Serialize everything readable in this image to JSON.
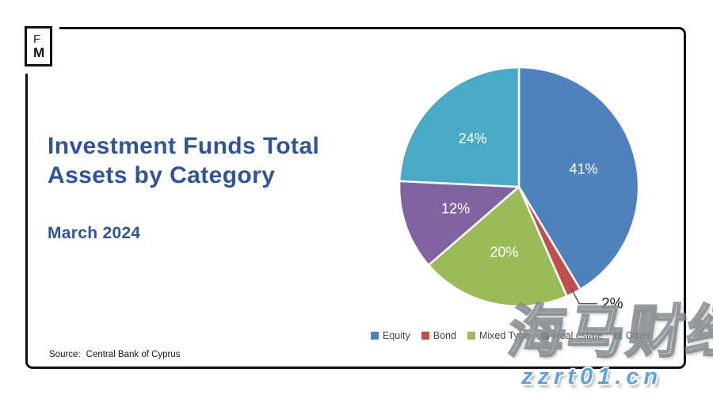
{
  "page": {
    "logo": {
      "letter_top": "F",
      "letter_bottom": "M"
    },
    "source_label": "Source:",
    "source_value": "Central Bank of Cyprus",
    "watermark_cjk": "海马财经",
    "watermark_site": "zzrt01.cn"
  },
  "chart_data": {
    "type": "pie",
    "title": "Investment Funds Total Assets by Category",
    "title_line1": "Investment Funds Total",
    "title_line2": "Assets by Category",
    "subtitle": "March 2024",
    "categories": [
      "Equity",
      "Bond",
      "Mixed Type",
      "Real estate",
      "Other"
    ],
    "values": [
      41,
      2,
      20,
      12,
      24
    ],
    "data_labels": [
      "41%",
      "2%",
      "20%",
      "12%",
      "24%"
    ],
    "colors": [
      "#4F81BD",
      "#C0504D",
      "#9BBB59",
      "#8064A2",
      "#4AA9C5"
    ],
    "slice_border_color": "#FFFFFF",
    "label_color_inside": "#FFFFFF",
    "label_color_outside": "#1A1A1A",
    "leader_line_color": "#555555",
    "title_color": "#2F5596",
    "legend_position": "bottom",
    "start_angle_deg": 0,
    "clockwise": true,
    "source": "Central Bank of Cyprus"
  }
}
